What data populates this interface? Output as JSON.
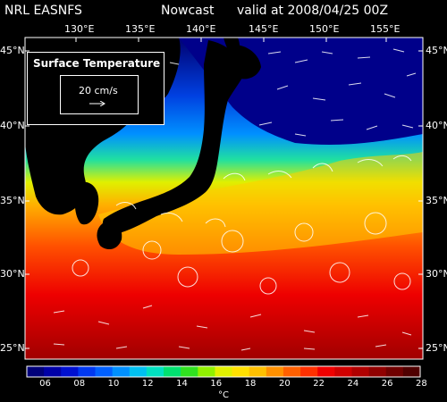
{
  "header": {
    "left": "NRL EASNFS",
    "mid": "Nowcast",
    "right": "valid at 2008/04/25 00Z"
  },
  "legend": {
    "title": "Surface Temperature",
    "ref_vector": "20 cm/s"
  },
  "lon_labels": [
    "130°E",
    "135°E",
    "140°E",
    "145°E",
    "150°E",
    "155°E"
  ],
  "lat_labels": [
    "45°N",
    "40°N",
    "35°N",
    "30°N",
    "25°N"
  ],
  "colorbar": {
    "ticks": [
      "06",
      "08",
      "10",
      "12",
      "14",
      "16",
      "18",
      "20",
      "22",
      "24",
      "26",
      "28"
    ],
    "unit": "°C",
    "colors": [
      "#00007a",
      "#0000a8",
      "#0010d0",
      "#0038f0",
      "#0060ff",
      "#0090ff",
      "#00c0f0",
      "#00e0c0",
      "#00e070",
      "#30e020",
      "#90f000",
      "#e0f000",
      "#ffe000",
      "#ffc000",
      "#ff9000",
      "#ff6000",
      "#ff3000",
      "#f00000",
      "#d00000",
      "#b00000",
      "#900000",
      "#700000",
      "#500000"
    ]
  }
}
